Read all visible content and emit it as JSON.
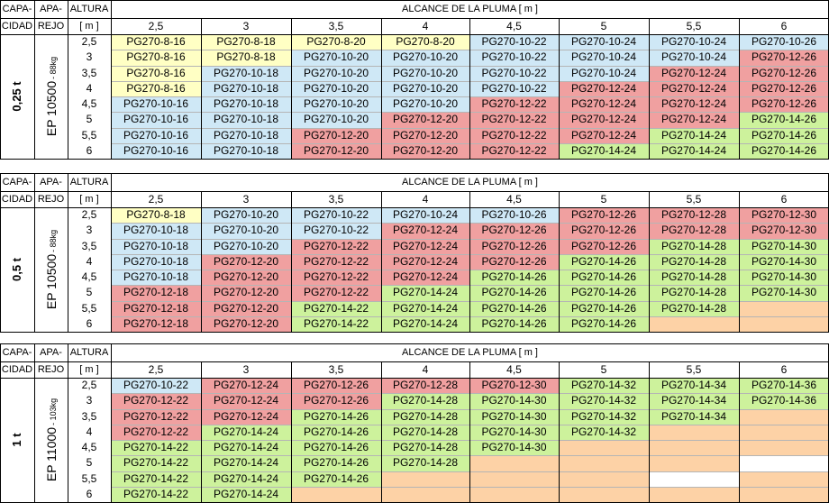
{
  "colors": {
    "yellow": "#ffffc4",
    "blue": "#cfe8f6",
    "red": "#f0a0a0",
    "green": "#cdf29c",
    "orange": "#fdd2a6",
    "white": "#ffffff"
  },
  "header": {
    "capacity_top": "CAPA-",
    "capacity_bottom": "CIDAD",
    "device_top": "APA-",
    "device_bottom": "REJO",
    "height_top": "ALTURA",
    "height_unit": "[ m ]",
    "reach_title": "ALCANCE  DE  LA  PLUMA  [ m ]",
    "reach_values": [
      "2,5",
      "3",
      "3,5",
      "4",
      "4,5",
      "5",
      "5,5",
      "6"
    ]
  },
  "heights": [
    "2,5",
    "3",
    "3,5",
    "4",
    "4,5",
    "5",
    "5,5",
    "6"
  ],
  "blocks": [
    {
      "capacity": "0,25 t",
      "device": "EP 10500",
      "device_weight": "- 88kg",
      "rows": [
        [
          [
            "PG270-8-16",
            "yellow"
          ],
          [
            "PG270-8-18",
            "yellow"
          ],
          [
            "PG270-8-20",
            "yellow"
          ],
          [
            "PG270-8-20",
            "yellow"
          ],
          [
            "PG270-10-22",
            "blue"
          ],
          [
            "PG270-10-24",
            "blue"
          ],
          [
            "PG270-10-24",
            "blue"
          ],
          [
            "PG270-10-26",
            "blue"
          ]
        ],
        [
          [
            "PG270-8-16",
            "yellow"
          ],
          [
            "PG270-8-18",
            "yellow"
          ],
          [
            "PG270-10-20",
            "blue"
          ],
          [
            "PG270-10-20",
            "blue"
          ],
          [
            "PG270-10-22",
            "blue"
          ],
          [
            "PG270-10-24",
            "blue"
          ],
          [
            "PG270-10-24",
            "blue"
          ],
          [
            "PG270-12-26",
            "red"
          ]
        ],
        [
          [
            "PG270-8-16",
            "yellow"
          ],
          [
            "PG270-10-18",
            "blue"
          ],
          [
            "PG270-10-20",
            "blue"
          ],
          [
            "PG270-10-20",
            "blue"
          ],
          [
            "PG270-10-22",
            "blue"
          ],
          [
            "PG270-10-24",
            "blue"
          ],
          [
            "PG270-12-24",
            "red"
          ],
          [
            "PG270-12-26",
            "red"
          ]
        ],
        [
          [
            "PG270-8-16",
            "yellow"
          ],
          [
            "PG270-10-18",
            "blue"
          ],
          [
            "PG270-10-20",
            "blue"
          ],
          [
            "PG270-10-20",
            "blue"
          ],
          [
            "PG270-10-22",
            "blue"
          ],
          [
            "PG270-12-24",
            "red"
          ],
          [
            "PG270-12-24",
            "red"
          ],
          [
            "PG270-12-26",
            "red"
          ]
        ],
        [
          [
            "PG270-10-16",
            "blue"
          ],
          [
            "PG270-10-18",
            "blue"
          ],
          [
            "PG270-10-20",
            "blue"
          ],
          [
            "PG270-10-20",
            "blue"
          ],
          [
            "PG270-12-22",
            "red"
          ],
          [
            "PG270-12-24",
            "red"
          ],
          [
            "PG270-12-24",
            "red"
          ],
          [
            "PG270-12-26",
            "red"
          ]
        ],
        [
          [
            "PG270-10-16",
            "blue"
          ],
          [
            "PG270-10-18",
            "blue"
          ],
          [
            "PG270-10-20",
            "blue"
          ],
          [
            "PG270-12-20",
            "red"
          ],
          [
            "PG270-12-22",
            "red"
          ],
          [
            "PG270-12-24",
            "red"
          ],
          [
            "PG270-12-24",
            "red"
          ],
          [
            "PG270-14-26",
            "green"
          ]
        ],
        [
          [
            "PG270-10-16",
            "blue"
          ],
          [
            "PG270-10-18",
            "blue"
          ],
          [
            "PG270-12-20",
            "red"
          ],
          [
            "PG270-12-20",
            "red"
          ],
          [
            "PG270-12-22",
            "red"
          ],
          [
            "PG270-12-24",
            "red"
          ],
          [
            "PG270-14-24",
            "green"
          ],
          [
            "PG270-14-26",
            "green"
          ]
        ],
        [
          [
            "PG270-10-16",
            "blue"
          ],
          [
            "PG270-10-18",
            "blue"
          ],
          [
            "PG270-12-20",
            "red"
          ],
          [
            "PG270-12-20",
            "red"
          ],
          [
            "PG270-12-22",
            "red"
          ],
          [
            "PG270-14-24",
            "green"
          ],
          [
            "PG270-14-24",
            "green"
          ],
          [
            "PG270-14-26",
            "green"
          ]
        ]
      ]
    },
    {
      "capacity": "0,5 t",
      "device": "EP 10500",
      "device_weight": "- 88kg",
      "rows": [
        [
          [
            "PG270-8-18",
            "yellow"
          ],
          [
            "PG270-10-20",
            "blue"
          ],
          [
            "PG270-10-22",
            "blue"
          ],
          [
            "PG270-10-24",
            "blue"
          ],
          [
            "PG270-10-26",
            "blue"
          ],
          [
            "PG270-12-26",
            "red"
          ],
          [
            "PG270-12-28",
            "red"
          ],
          [
            "PG270-12-30",
            "red"
          ]
        ],
        [
          [
            "PG270-10-18",
            "blue"
          ],
          [
            "PG270-10-20",
            "blue"
          ],
          [
            "PG270-10-22",
            "blue"
          ],
          [
            "PG270-12-24",
            "red"
          ],
          [
            "PG270-12-26",
            "red"
          ],
          [
            "PG270-12-26",
            "red"
          ],
          [
            "PG270-12-28",
            "red"
          ],
          [
            "PG270-12-30",
            "red"
          ]
        ],
        [
          [
            "PG270-10-18",
            "blue"
          ],
          [
            "PG270-10-20",
            "blue"
          ],
          [
            "PG270-12-22",
            "red"
          ],
          [
            "PG270-12-24",
            "red"
          ],
          [
            "PG270-12-26",
            "red"
          ],
          [
            "PG270-12-26",
            "red"
          ],
          [
            "PG270-14-28",
            "green"
          ],
          [
            "PG270-14-30",
            "green"
          ]
        ],
        [
          [
            "PG270-10-18",
            "blue"
          ],
          [
            "PG270-12-20",
            "red"
          ],
          [
            "PG270-12-22",
            "red"
          ],
          [
            "PG270-12-24",
            "red"
          ],
          [
            "PG270-12-26",
            "red"
          ],
          [
            "PG270-14-26",
            "green"
          ],
          [
            "PG270-14-28",
            "green"
          ],
          [
            "PG270-14-30",
            "green"
          ]
        ],
        [
          [
            "PG270-10-18",
            "blue"
          ],
          [
            "PG270-12-20",
            "red"
          ],
          [
            "PG270-12-22",
            "red"
          ],
          [
            "PG270-12-24",
            "red"
          ],
          [
            "PG270-14-26",
            "green"
          ],
          [
            "PG270-14-26",
            "green"
          ],
          [
            "PG270-14-28",
            "green"
          ],
          [
            "PG270-14-30",
            "green"
          ]
        ],
        [
          [
            "PG270-12-18",
            "red"
          ],
          [
            "PG270-12-20",
            "red"
          ],
          [
            "PG270-12-22",
            "red"
          ],
          [
            "PG270-14-24",
            "green"
          ],
          [
            "PG270-14-26",
            "green"
          ],
          [
            "PG270-14-26",
            "green"
          ],
          [
            "PG270-14-28",
            "green"
          ],
          [
            "PG270-14-30",
            "green"
          ]
        ],
        [
          [
            "PG270-12-18",
            "red"
          ],
          [
            "PG270-12-20",
            "red"
          ],
          [
            "PG270-14-22",
            "green"
          ],
          [
            "PG270-14-24",
            "green"
          ],
          [
            "PG270-14-26",
            "green"
          ],
          [
            "PG270-14-26",
            "green"
          ],
          [
            "PG270-14-28",
            "green"
          ],
          [
            "",
            "orange"
          ]
        ],
        [
          [
            "PG270-12-18",
            "red"
          ],
          [
            "PG270-12-20",
            "red"
          ],
          [
            "PG270-14-22",
            "green"
          ],
          [
            "PG270-14-24",
            "green"
          ],
          [
            "PG270-14-26",
            "green"
          ],
          [
            "PG270-14-26",
            "green"
          ],
          [
            "",
            "orange"
          ],
          [
            "",
            "orange"
          ]
        ]
      ]
    },
    {
      "capacity": "1 t",
      "device": "EP 11000",
      "device_weight": "- 103kg",
      "rows": [
        [
          [
            "PG270-10-22",
            "blue"
          ],
          [
            "PG270-12-24",
            "red"
          ],
          [
            "PG270-12-26",
            "red"
          ],
          [
            "PG270-12-28",
            "red"
          ],
          [
            "PG270-12-30",
            "red"
          ],
          [
            "PG270-14-32",
            "green"
          ],
          [
            "PG270-14-34",
            "green"
          ],
          [
            "PG270-14-36",
            "green"
          ]
        ],
        [
          [
            "PG270-12-22",
            "red"
          ],
          [
            "PG270-12-24",
            "red"
          ],
          [
            "PG270-12-26",
            "red"
          ],
          [
            "PG270-14-28",
            "green"
          ],
          [
            "PG270-14-30",
            "green"
          ],
          [
            "PG270-14-32",
            "green"
          ],
          [
            "PG270-14-34",
            "green"
          ],
          [
            "PG270-14-36",
            "green"
          ]
        ],
        [
          [
            "PG270-12-22",
            "red"
          ],
          [
            "PG270-12-24",
            "red"
          ],
          [
            "PG270-14-26",
            "green"
          ],
          [
            "PG270-14-28",
            "green"
          ],
          [
            "PG270-14-30",
            "green"
          ],
          [
            "PG270-14-32",
            "green"
          ],
          [
            "PG270-14-34",
            "green"
          ],
          [
            "",
            "orange"
          ]
        ],
        [
          [
            "PG270-12-22",
            "red"
          ],
          [
            "PG270-14-24",
            "green"
          ],
          [
            "PG270-14-26",
            "green"
          ],
          [
            "PG270-14-28",
            "green"
          ],
          [
            "PG270-14-30",
            "green"
          ],
          [
            "PG270-14-32",
            "green"
          ],
          [
            "",
            "orange"
          ],
          [
            "",
            "orange"
          ]
        ],
        [
          [
            "PG270-14-22",
            "green"
          ],
          [
            "PG270-14-24",
            "green"
          ],
          [
            "PG270-14-26",
            "green"
          ],
          [
            "PG270-14-28",
            "green"
          ],
          [
            "PG270-14-30",
            "green"
          ],
          [
            "",
            "orange"
          ],
          [
            "",
            "orange"
          ],
          [
            "",
            "orange"
          ]
        ],
        [
          [
            "PG270-14-22",
            "green"
          ],
          [
            "PG270-14-24",
            "green"
          ],
          [
            "PG270-14-26",
            "green"
          ],
          [
            "PG270-14-28",
            "green"
          ],
          [
            "",
            "orange"
          ],
          [
            "",
            "orange"
          ],
          [
            "",
            "orange"
          ],
          [
            "",
            "white"
          ]
        ],
        [
          [
            "PG270-14-22",
            "green"
          ],
          [
            "PG270-14-24",
            "green"
          ],
          [
            "PG270-14-26",
            "green"
          ],
          [
            "",
            "orange"
          ],
          [
            "",
            "orange"
          ],
          [
            "",
            "orange"
          ],
          [
            "",
            "white"
          ],
          [
            "",
            "orange"
          ]
        ],
        [
          [
            "PG270-14-22",
            "green"
          ],
          [
            "PG270-14-24",
            "green"
          ],
          [
            "",
            "orange"
          ],
          [
            "",
            "orange"
          ],
          [
            "",
            "orange"
          ],
          [
            "",
            "orange"
          ],
          [
            "",
            "orange"
          ],
          [
            "",
            "orange"
          ]
        ]
      ]
    }
  ]
}
